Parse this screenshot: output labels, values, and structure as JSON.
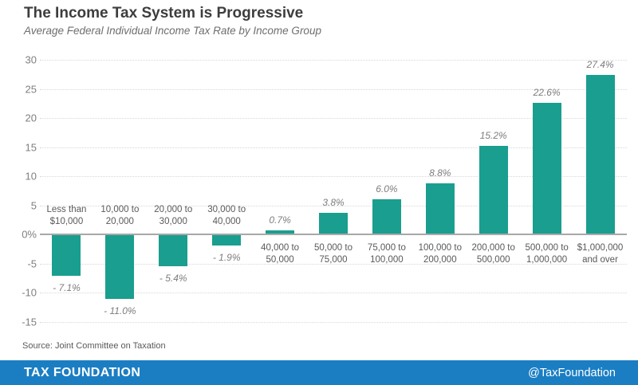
{
  "header": {
    "title": "The Income Tax System is Progressive",
    "subtitle": "Average Federal Individual Income Tax Rate by Income Group"
  },
  "chart_data": {
    "type": "bar",
    "title": "The Income Tax System is Progressive",
    "subtitle": "Average Federal Individual Income Tax Rate by Income Group",
    "categories": [
      "Less than $10,000",
      "10,000 to 20,000",
      "20,000 to 30,000",
      "30,000 to 40,000",
      "40,000 to 50,000",
      "50,000 to 75,000",
      "75,000 to 100,000",
      "100,000 to 200,000",
      "200,000 to 500,000",
      "500,000 to 1,000,000",
      "$1,000,000 and over"
    ],
    "category_lines": [
      [
        "Less than",
        "$10,000"
      ],
      [
        "10,000 to",
        "20,000"
      ],
      [
        "20,000 to",
        "30,000"
      ],
      [
        "30,000 to",
        "40,000"
      ],
      [
        "40,000 to",
        "50,000"
      ],
      [
        "50,000 to",
        "75,000"
      ],
      [
        "75,000 to",
        "100,000"
      ],
      [
        "100,000 to",
        "200,000"
      ],
      [
        "200,000 to",
        "500,000"
      ],
      [
        "500,000 to",
        "1,000,000"
      ],
      [
        "$1,000,000",
        "and over"
      ]
    ],
    "values": [
      -7.1,
      -11.0,
      -5.4,
      -1.9,
      0.7,
      3.8,
      6.0,
      8.8,
      15.2,
      22.6,
      27.4
    ],
    "value_labels": [
      "- 7.1%",
      "- 11.0%",
      "- 5.4%",
      "- 1.9%",
      "0.7%",
      "3.8%",
      "6.0%",
      "8.8%",
      "15.2%",
      "22.6%",
      "27.4%"
    ],
    "xlabel": "",
    "ylabel": "",
    "ylim": [
      -15,
      30
    ],
    "yticks": [
      30,
      25,
      20,
      15,
      10,
      5,
      0,
      -5,
      -10,
      -15
    ],
    "ytick_labels": [
      "30",
      "25",
      "20",
      "15",
      "10",
      "5",
      "0%",
      "-5",
      "-10",
      "-15"
    ],
    "grid": "horizontal-dotted",
    "legend": "none",
    "bar_color": "#1A9E8F"
  },
  "footer": {
    "source": "Source: Joint Committee on Taxation",
    "brand": "TAX FOUNDATION",
    "handle": "@TaxFoundation",
    "bar_color": "#1B7EC3"
  },
  "colors": {
    "bar": "#1A9E8F",
    "footer_bar": "#1B7EC3",
    "title_text": "#3D3D3D",
    "subtitle_text": "#6E6E6E",
    "axis_tick_text": "#7F7F7F",
    "category_text": "#595959",
    "value_label_text": "#7D7D7D",
    "gridline": "#D8D8D8",
    "zero_line": "#A8A8A8"
  }
}
